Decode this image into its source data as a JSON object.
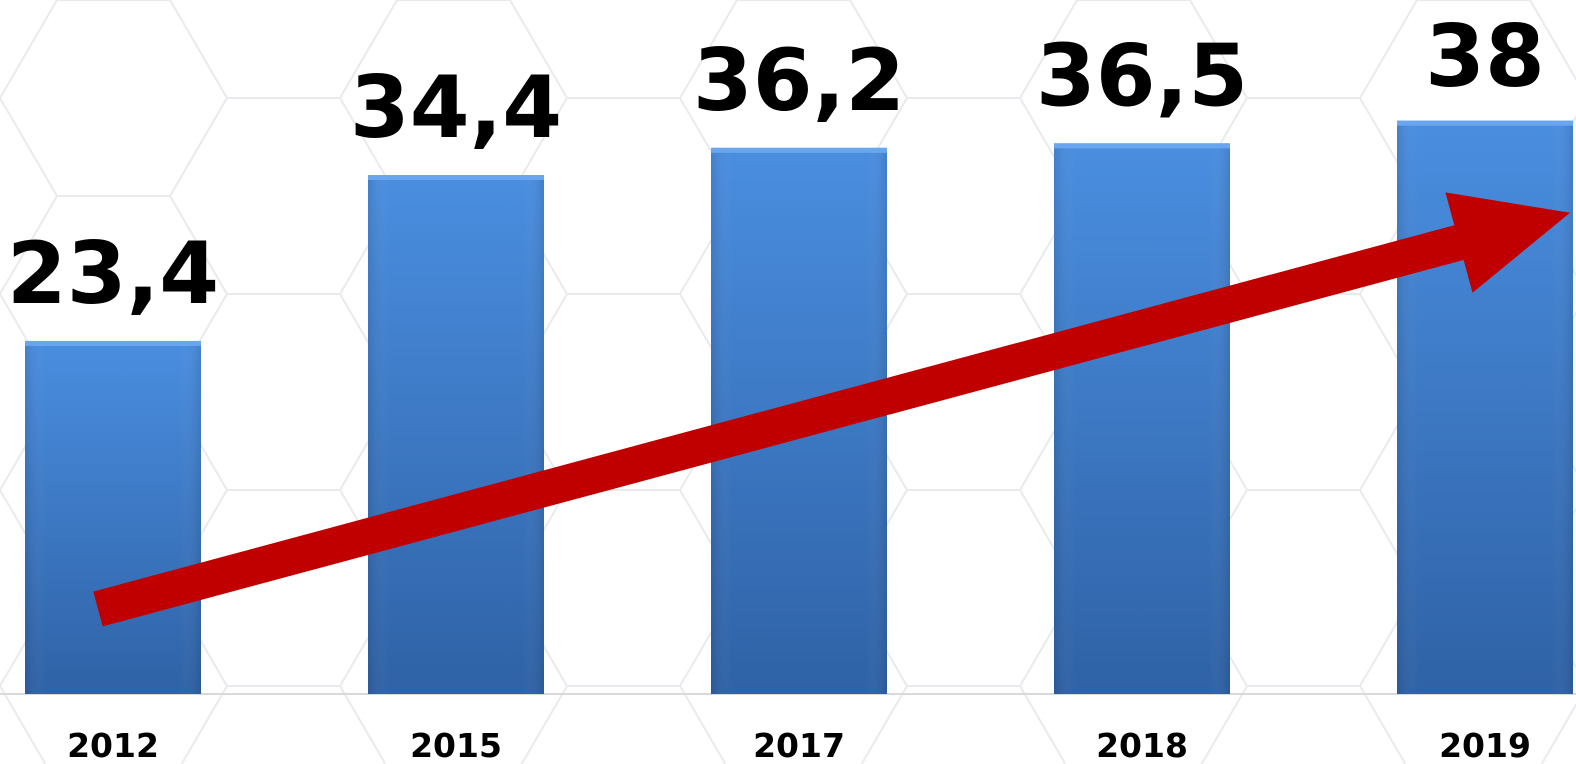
{
  "chart_data": {
    "type": "bar",
    "categories": [
      "2012",
      "2015",
      "2017",
      "2018",
      "2019"
    ],
    "values": [
      23.4,
      34.4,
      36.2,
      36.5,
      38
    ],
    "value_labels": [
      "23,4",
      "34,4",
      "36,2",
      "36,5",
      "38"
    ],
    "title": "",
    "xlabel": "",
    "ylabel": "",
    "ylim": [
      0,
      46
    ],
    "grid": false,
    "legend": "none",
    "annotations": [
      {
        "kind": "trend-arrow",
        "direction": "upward",
        "color": "#c00000"
      }
    ],
    "colors": {
      "bar_top": "#4a8ee0",
      "bar_bottom": "#2f62a6",
      "bar_edge": "#6aa6ef",
      "arrow": "#c00000",
      "baseline": "#d9d9d9",
      "background_pattern": "#e8eaee"
    }
  }
}
